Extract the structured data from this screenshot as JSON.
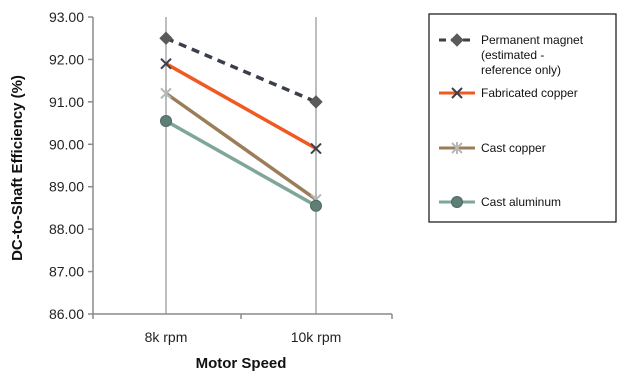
{
  "chart_data": {
    "type": "line",
    "categories": [
      "8k rpm",
      "10k rpm"
    ],
    "xlabel": "Motor Speed",
    "ylabel": "DC-to-Shaft Efficiency (%)",
    "ylim": [
      86.0,
      93.0
    ],
    "yticks": [
      "86.00",
      "87.00",
      "88.00",
      "89.00",
      "90.00",
      "91.00",
      "92.00",
      "93.00"
    ],
    "grid": "vertical",
    "legend": "right",
    "series": [
      {
        "name_lines": [
          "Permanent magnet",
          "(estimated -",
          "reference only)"
        ],
        "values": [
          92.5,
          91.0
        ],
        "color": "#3a3f4a",
        "dash": "8,6",
        "marker": "diamond",
        "marker_color": "#5a5a5a"
      },
      {
        "name_lines": [
          "Fabricated copper"
        ],
        "values": [
          91.9,
          89.9
        ],
        "color": "#f05a22",
        "dash": "",
        "marker": "x",
        "marker_color": "#3a3f4a"
      },
      {
        "name_lines": [
          "Cast copper"
        ],
        "values": [
          91.2,
          88.7
        ],
        "color": "#9b7d5a",
        "dash": "",
        "marker": "star",
        "marker_color": "#b8b8b8"
      },
      {
        "name_lines": [
          "Cast aluminum"
        ],
        "values": [
          90.55,
          88.55
        ],
        "color": "#7fa699",
        "dash": "",
        "marker": "circle",
        "marker_color": "#5f7f76"
      }
    ]
  }
}
